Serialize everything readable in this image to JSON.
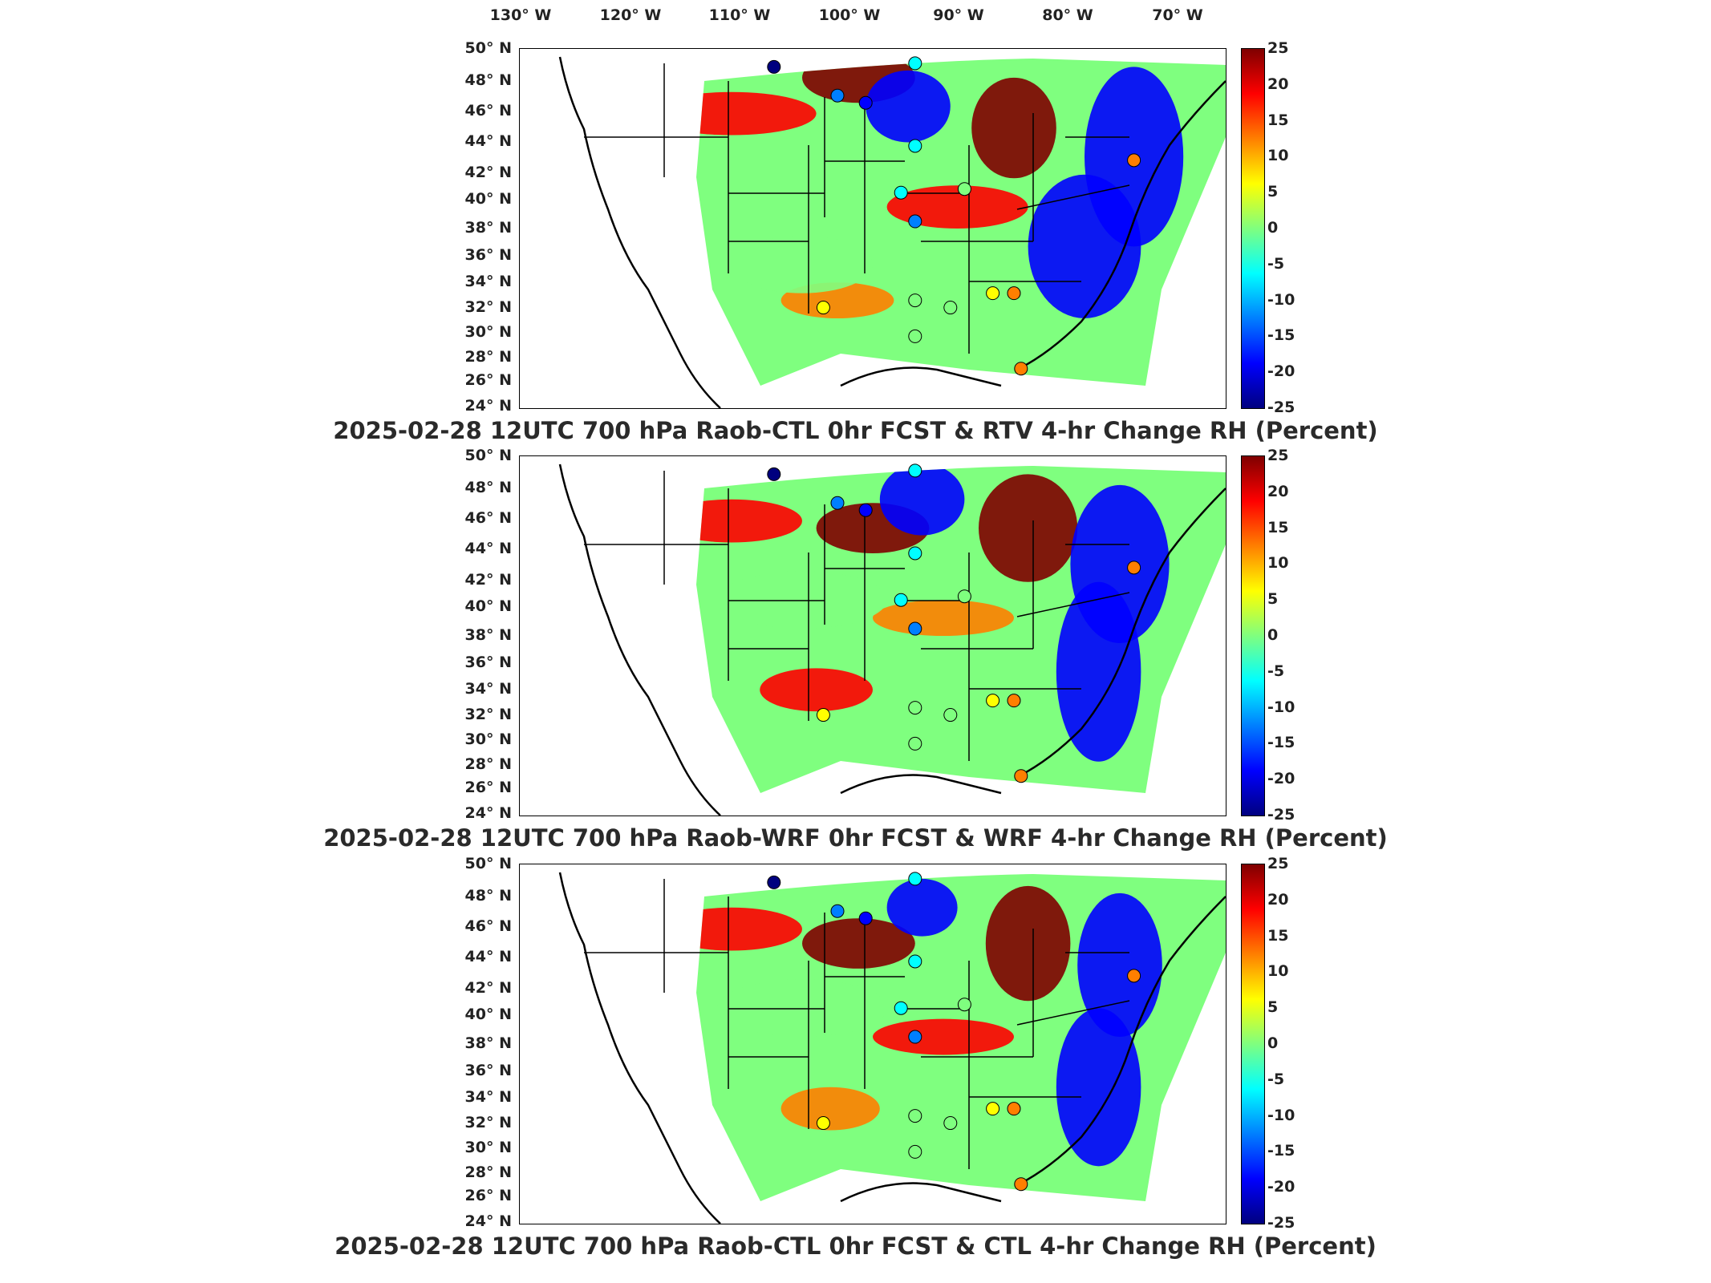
{
  "figure": {
    "lon_labels": [
      "130° W",
      "120° W",
      "110° W",
      "100° W",
      "90° W",
      "80° W",
      "70° W"
    ],
    "lat_labels": [
      "50° N",
      "48° N",
      "46° N",
      "44° N",
      "42° N",
      "40° N",
      "38° N",
      "36° N",
      "34° N",
      "32° N",
      "30° N",
      "28° N",
      "26° N",
      "24° N"
    ],
    "colorbar": {
      "ticks": [
        "25",
        "20",
        "15",
        "10",
        "5",
        "0",
        "-5",
        "-10",
        "-15",
        "-20",
        "-25"
      ],
      "range": [
        -25,
        25
      ],
      "colormap": "jet"
    },
    "panels": [
      {
        "title": "2025-02-28 12UTC 700 hPa Raob-CTL 0hr FCST & RTV 4-hr Change RH (Percent)"
      },
      {
        "title": "2025-02-28 12UTC 700 hPa Raob-WRF 0hr FCST & WRF 4-hr Change RH (Percent)"
      },
      {
        "title": "2025-02-28 12UTC 700 hPa Raob-CTL 0hr FCST & CTL 4-hr Change RH (Percent)"
      }
    ]
  },
  "colors": {
    "dark_red": "#7f0000",
    "red": "#ff0000",
    "orange": "#ff7f00",
    "yellow": "#ffff00",
    "green": "#7fff7f",
    "cyan": "#00ffff",
    "blue": "#007fff",
    "dark_blue": "#00007f"
  }
}
